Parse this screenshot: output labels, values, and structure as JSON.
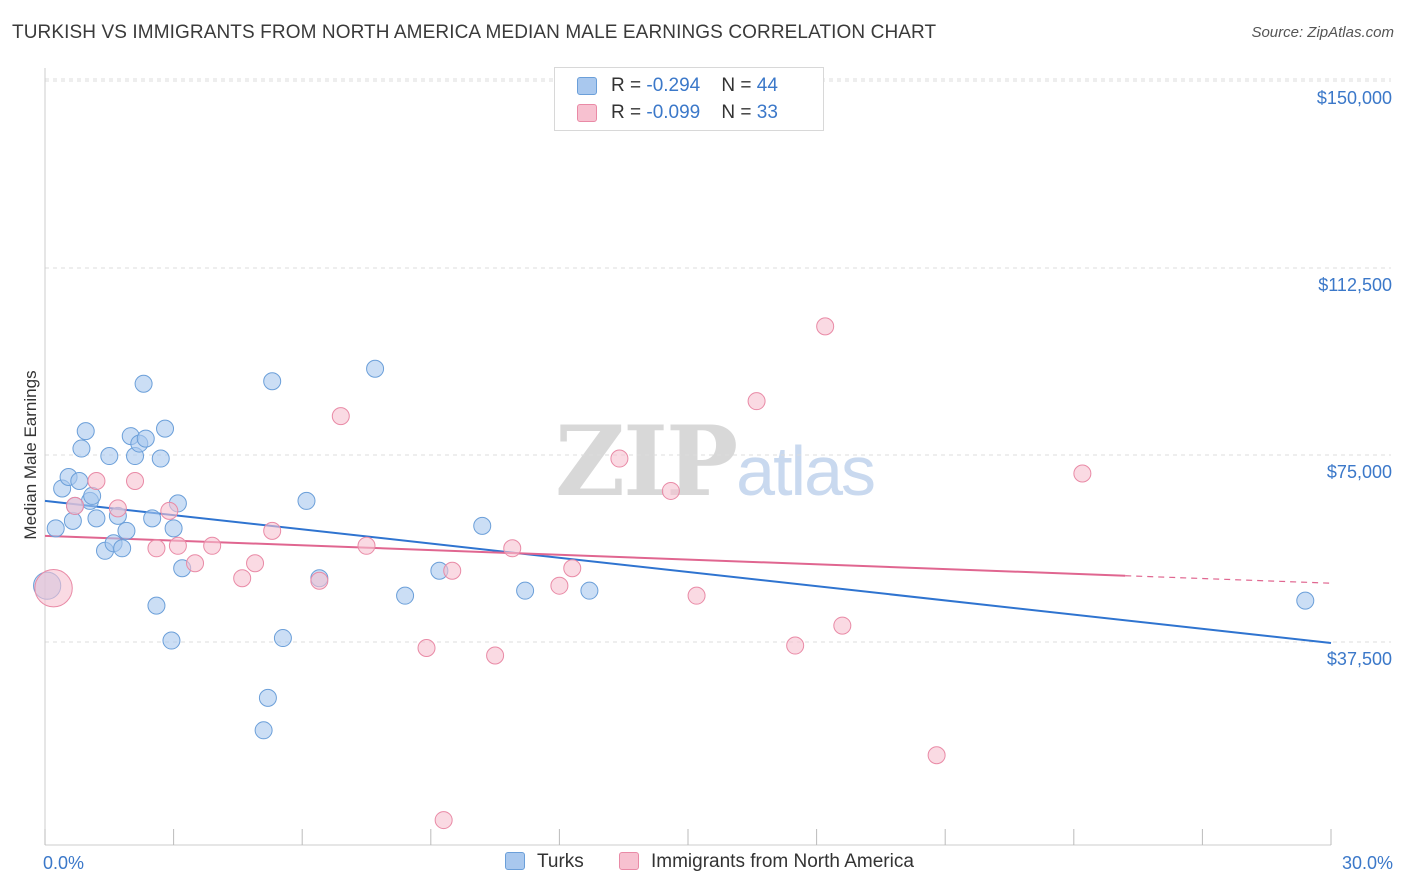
{
  "header": {
    "title": "TURKISH VS IMMIGRANTS FROM NORTH AMERICA MEDIAN MALE EARNINGS CORRELATION CHART",
    "source": "Source: ZipAtlas.com"
  },
  "watermark": {
    "zip": "ZIP",
    "atlas": "atlas"
  },
  "legend": {
    "turks": {
      "r_label": "R = ",
      "r_value": "-0.294",
      "n_label": "N = ",
      "n_value": "44"
    },
    "immigrants": {
      "r_label": "R = ",
      "r_value": "-0.099",
      "n_label": "N = ",
      "n_value": "33"
    }
  },
  "bottom_legend": {
    "turks": "Turks",
    "immigrants": "Immigrants from North America"
  },
  "colors": {
    "turks_fill": "#a9c8ee",
    "turks_stroke": "#6b9fd9",
    "turks_line": "#2f74d0",
    "imm_fill": "#f7c1d0",
    "imm_stroke": "#e98aa6",
    "imm_line": "#e06690",
    "tick_text": "#3b78c9",
    "grid": "#dcdcdc"
  },
  "chart_data": {
    "type": "scatter",
    "title": "TURKISH VS IMMIGRANTS FROM NORTH AMERICA MEDIAN MALE EARNINGS CORRELATION CHART",
    "xlabel": "",
    "ylabel": "Median Male Earnings",
    "xlim": [
      0,
      30
    ],
    "ylim": [
      0,
      157500
    ],
    "x_tick_labels": [
      "0.0%",
      "30.0%"
    ],
    "y_ticks": [
      37500,
      75000,
      112500,
      150000
    ],
    "y_tick_labels": [
      "$37,500",
      "$75,000",
      "$112,500",
      "$150,000"
    ],
    "grid": "horizontal dashed",
    "series": [
      {
        "name": "Turks",
        "points": [
          [
            0.05,
            52000,
            1.6
          ],
          [
            0.25,
            63500,
            1
          ],
          [
            0.4,
            71500,
            1
          ],
          [
            0.55,
            73800,
            1
          ],
          [
            0.65,
            65000,
            1
          ],
          [
            0.7,
            68000,
            1
          ],
          [
            0.8,
            73000,
            1
          ],
          [
            0.85,
            79500,
            1
          ],
          [
            0.95,
            83000,
            1
          ],
          [
            1.05,
            69000,
            1
          ],
          [
            1.1,
            70000,
            1
          ],
          [
            1.2,
            65500,
            1
          ],
          [
            1.4,
            59000,
            1
          ],
          [
            1.5,
            78000,
            1
          ],
          [
            1.6,
            60500,
            1
          ],
          [
            1.7,
            66000,
            1
          ],
          [
            1.8,
            59500,
            1
          ],
          [
            1.9,
            63000,
            1
          ],
          [
            2.0,
            82000,
            1
          ],
          [
            2.1,
            78000,
            1
          ],
          [
            2.2,
            80500,
            1
          ],
          [
            2.3,
            92500,
            1
          ],
          [
            2.35,
            81500,
            1
          ],
          [
            2.5,
            65500,
            1
          ],
          [
            2.6,
            48000,
            1
          ],
          [
            2.7,
            77500,
            1
          ],
          [
            2.8,
            83500,
            1
          ],
          [
            2.95,
            41000,
            1
          ],
          [
            3.0,
            63500,
            1
          ],
          [
            3.1,
            68500,
            1
          ],
          [
            3.2,
            55500,
            1
          ],
          [
            5.1,
            23000,
            1
          ],
          [
            5.2,
            29500,
            1
          ],
          [
            5.3,
            93000,
            1
          ],
          [
            5.55,
            41500,
            1
          ],
          [
            6.1,
            69000,
            1
          ],
          [
            6.4,
            53500,
            1
          ],
          [
            7.7,
            95500,
            1
          ],
          [
            8.4,
            50000,
            1
          ],
          [
            9.2,
            55000,
            1
          ],
          [
            10.2,
            64000,
            1
          ],
          [
            11.2,
            51000,
            1
          ],
          [
            12.7,
            51000,
            1
          ],
          [
            29.4,
            49000,
            1
          ]
        ]
      },
      {
        "name": "Immigrants from North America",
        "points": [
          [
            0.2,
            51500,
            2.2
          ],
          [
            0.7,
            68000,
            1
          ],
          [
            1.2,
            73000,
            1
          ],
          [
            1.7,
            67500,
            1
          ],
          [
            2.1,
            73000,
            1
          ],
          [
            2.6,
            59500,
            1
          ],
          [
            2.9,
            67000,
            1
          ],
          [
            3.1,
            60000,
            1
          ],
          [
            3.5,
            56500,
            1
          ],
          [
            3.9,
            60000,
            1
          ],
          [
            4.6,
            53500,
            1
          ],
          [
            4.9,
            56500,
            1
          ],
          [
            5.3,
            63000,
            1
          ],
          [
            6.4,
            53000,
            1
          ],
          [
            6.9,
            86000,
            1
          ],
          [
            7.5,
            60000,
            1
          ],
          [
            8.9,
            39500,
            1
          ],
          [
            9.3,
            5000,
            1
          ],
          [
            9.5,
            55000,
            1
          ],
          [
            10.5,
            38000,
            1
          ],
          [
            10.9,
            59500,
            1
          ],
          [
            12.0,
            52000,
            1
          ],
          [
            12.3,
            55500,
            1
          ],
          [
            13.4,
            77500,
            1
          ],
          [
            14.6,
            71000,
            1
          ],
          [
            15.2,
            50000,
            1
          ],
          [
            16.6,
            89000,
            1
          ],
          [
            17.5,
            40000,
            1
          ],
          [
            18.2,
            104000,
            1
          ],
          [
            18.6,
            44000,
            1
          ],
          [
            20.8,
            18000,
            1
          ],
          [
            24.2,
            74500,
            1
          ],
          [
            24.8,
            44000,
            0.01
          ]
        ]
      }
    ],
    "trendlines": [
      {
        "series": "Turks",
        "x": [
          0,
          30
        ],
        "y": [
          69000,
          40500
        ],
        "style": "solid"
      },
      {
        "series": "Immigrants from North America",
        "x": [
          0,
          25.2,
          30
        ],
        "y": [
          62000,
          54000,
          52500
        ],
        "style": "solid-then-dashed"
      }
    ]
  }
}
